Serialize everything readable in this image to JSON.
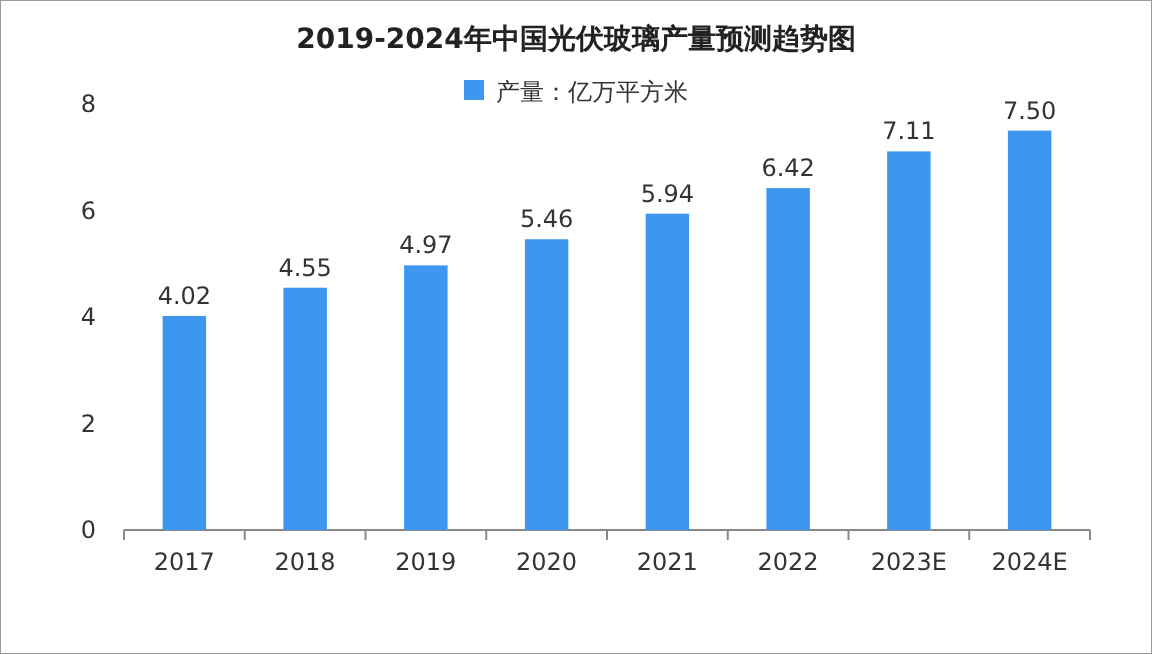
{
  "chart_data": {
    "type": "bar",
    "title": "2019-2024年中国光伏玻璃产量预测趋势图",
    "categories": [
      "2017",
      "2018",
      "2019",
      "2020",
      "2021",
      "2022",
      "2023E",
      "2024E"
    ],
    "series": [
      {
        "name": "产量：亿万平方米",
        "color": "#3d97f0",
        "values": [
          4.02,
          4.55,
          4.97,
          5.46,
          5.94,
          6.42,
          7.11,
          7.5
        ]
      }
    ],
    "value_labels": [
      "4.02",
      "4.55",
      "4.97",
      "5.46",
      "5.94",
      "6.42",
      "7.11",
      "7.50"
    ],
    "ylim": [
      0,
      8
    ],
    "yticks": [
      0,
      2,
      4,
      6,
      8
    ],
    "legend": "top"
  }
}
